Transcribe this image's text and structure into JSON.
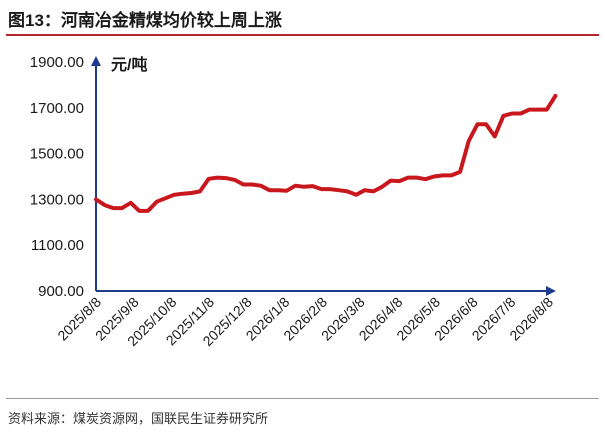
{
  "title": "图13：河南冶金精煤均价较上周上涨",
  "source": "资料来源：煤炭资源网，国联民生证券研究所",
  "colors": {
    "line": "#c9171e",
    "axis": "#1f3b8c",
    "title_rule": "#b3262a"
  },
  "chart_data": {
    "type": "line",
    "title": "图13：河南冶金精煤均价较上周上涨",
    "unit_label": "元/吨",
    "xlabel": "",
    "ylabel": "元/吨",
    "ylim": [
      900,
      1900
    ],
    "yticks": [
      "900.00",
      "1100.00",
      "1300.00",
      "1500.00",
      "1700.00",
      "1900.00"
    ],
    "xlim": [
      "2025-08-08",
      "2026-08-08"
    ],
    "xticks": [
      "2025/8/8",
      "2025/9/8",
      "2025/10/8",
      "2025/11/8",
      "2025/12/8",
      "2026/1/8",
      "2026/2/8",
      "2026/3/8",
      "2026/4/8",
      "2026/5/8",
      "2026/6/8",
      "2026/7/8",
      "2026/8/8"
    ],
    "grid": false,
    "legend": "none",
    "series": [
      {
        "points": [
          [
            "2025-08-08",
            1300
          ],
          [
            "2025-08-15",
            1275
          ],
          [
            "2025-08-22",
            1262
          ],
          [
            "2025-08-29",
            1262
          ],
          [
            "2025-09-05",
            1285
          ],
          [
            "2025-09-12",
            1250
          ],
          [
            "2025-09-19",
            1250
          ],
          [
            "2025-09-26",
            1290
          ],
          [
            "2025-10-03",
            1305
          ],
          [
            "2025-10-10",
            1320
          ],
          [
            "2025-10-17",
            1325
          ],
          [
            "2025-10-24",
            1328
          ],
          [
            "2025-10-31",
            1335
          ],
          [
            "2025-11-07",
            1390
          ],
          [
            "2025-11-14",
            1395
          ],
          [
            "2025-11-21",
            1393
          ],
          [
            "2025-11-28",
            1385
          ],
          [
            "2025-12-05",
            1365
          ],
          [
            "2025-12-12",
            1365
          ],
          [
            "2025-12-19",
            1360
          ],
          [
            "2025-12-26",
            1340
          ],
          [
            "2026-01-02",
            1340
          ],
          [
            "2026-01-09",
            1338
          ],
          [
            "2026-01-16",
            1360
          ],
          [
            "2026-01-23",
            1355
          ],
          [
            "2026-01-30",
            1358
          ],
          [
            "2026-02-06",
            1345
          ],
          [
            "2026-02-13",
            1345
          ],
          [
            "2026-02-20",
            1340
          ],
          [
            "2026-02-27",
            1335
          ],
          [
            "2026-03-06",
            1320
          ],
          [
            "2026-03-13",
            1340
          ],
          [
            "2026-03-20",
            1335
          ],
          [
            "2026-03-27",
            1355
          ],
          [
            "2026-04-03",
            1382
          ],
          [
            "2026-04-10",
            1380
          ],
          [
            "2026-04-17",
            1395
          ],
          [
            "2026-04-24",
            1395
          ],
          [
            "2026-05-01",
            1388
          ],
          [
            "2026-05-08",
            1400
          ],
          [
            "2026-05-15",
            1405
          ],
          [
            "2026-05-22",
            1405
          ],
          [
            "2026-05-29",
            1420
          ],
          [
            "2026-06-05",
            1555
          ],
          [
            "2026-06-12",
            1628
          ],
          [
            "2026-06-19",
            1628
          ],
          [
            "2026-06-26",
            1575
          ],
          [
            "2026-07-03",
            1665
          ],
          [
            "2026-07-10",
            1675
          ],
          [
            "2026-07-17",
            1675
          ],
          [
            "2026-07-24",
            1692
          ],
          [
            "2026-07-31",
            1692
          ],
          [
            "2026-08-07",
            1692
          ],
          [
            "2026-08-14",
            1752
          ]
        ]
      }
    ]
  }
}
